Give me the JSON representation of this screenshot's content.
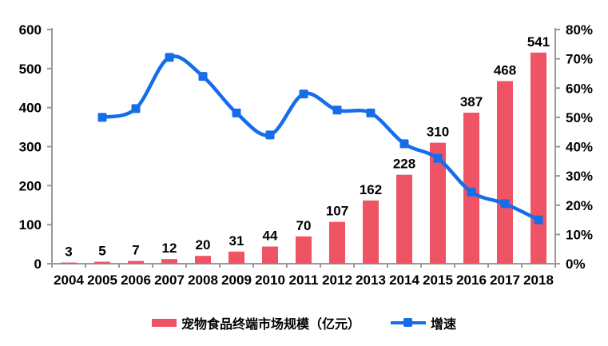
{
  "chart_data": {
    "type": "combo-bar-line",
    "title": "",
    "categories": [
      "2004",
      "2005",
      "2006",
      "2007",
      "2008",
      "2009",
      "2010",
      "2011",
      "2012",
      "2013",
      "2014",
      "2015",
      "2016",
      "2017",
      "2018"
    ],
    "series": [
      {
        "name": "宠物食品终端市场规模（亿元）",
        "type": "bar",
        "axis": "left",
        "color": "#EE5463",
        "values": [
          3,
          5,
          7,
          12,
          20,
          31,
          44,
          70,
          107,
          162,
          228,
          310,
          387,
          468,
          541
        ],
        "data_labels_shown": true
      },
      {
        "name": "增速",
        "type": "line",
        "axis": "right",
        "color": "#156DEA",
        "smooth": true,
        "marker": "square",
        "values_percent": [
          null,
          50,
          53,
          70.5,
          64,
          51.5,
          44,
          58,
          52.5,
          51.5,
          41,
          36,
          24.5,
          20.5,
          15
        ]
      }
    ],
    "left_axis": {
      "min": 0,
      "max": 600,
      "step": 100,
      "tick_labels": [
        "0",
        "100",
        "200",
        "300",
        "400",
        "500",
        "600"
      ]
    },
    "right_axis": {
      "min": 0,
      "max": 80,
      "step": 10,
      "tick_labels": [
        "0%",
        "10%",
        "20%",
        "30%",
        "40%",
        "50%",
        "60%",
        "70%",
        "80%"
      ]
    },
    "grid": false,
    "axis_color": "#999999",
    "label_color": "#000000",
    "background": "#FFFFFF",
    "legend": {
      "position": "bottom",
      "items": [
        {
          "label": "宠物食品终端市场规模（亿元）",
          "swatch": "bar"
        },
        {
          "label": "增速",
          "swatch": "line"
        }
      ]
    }
  }
}
